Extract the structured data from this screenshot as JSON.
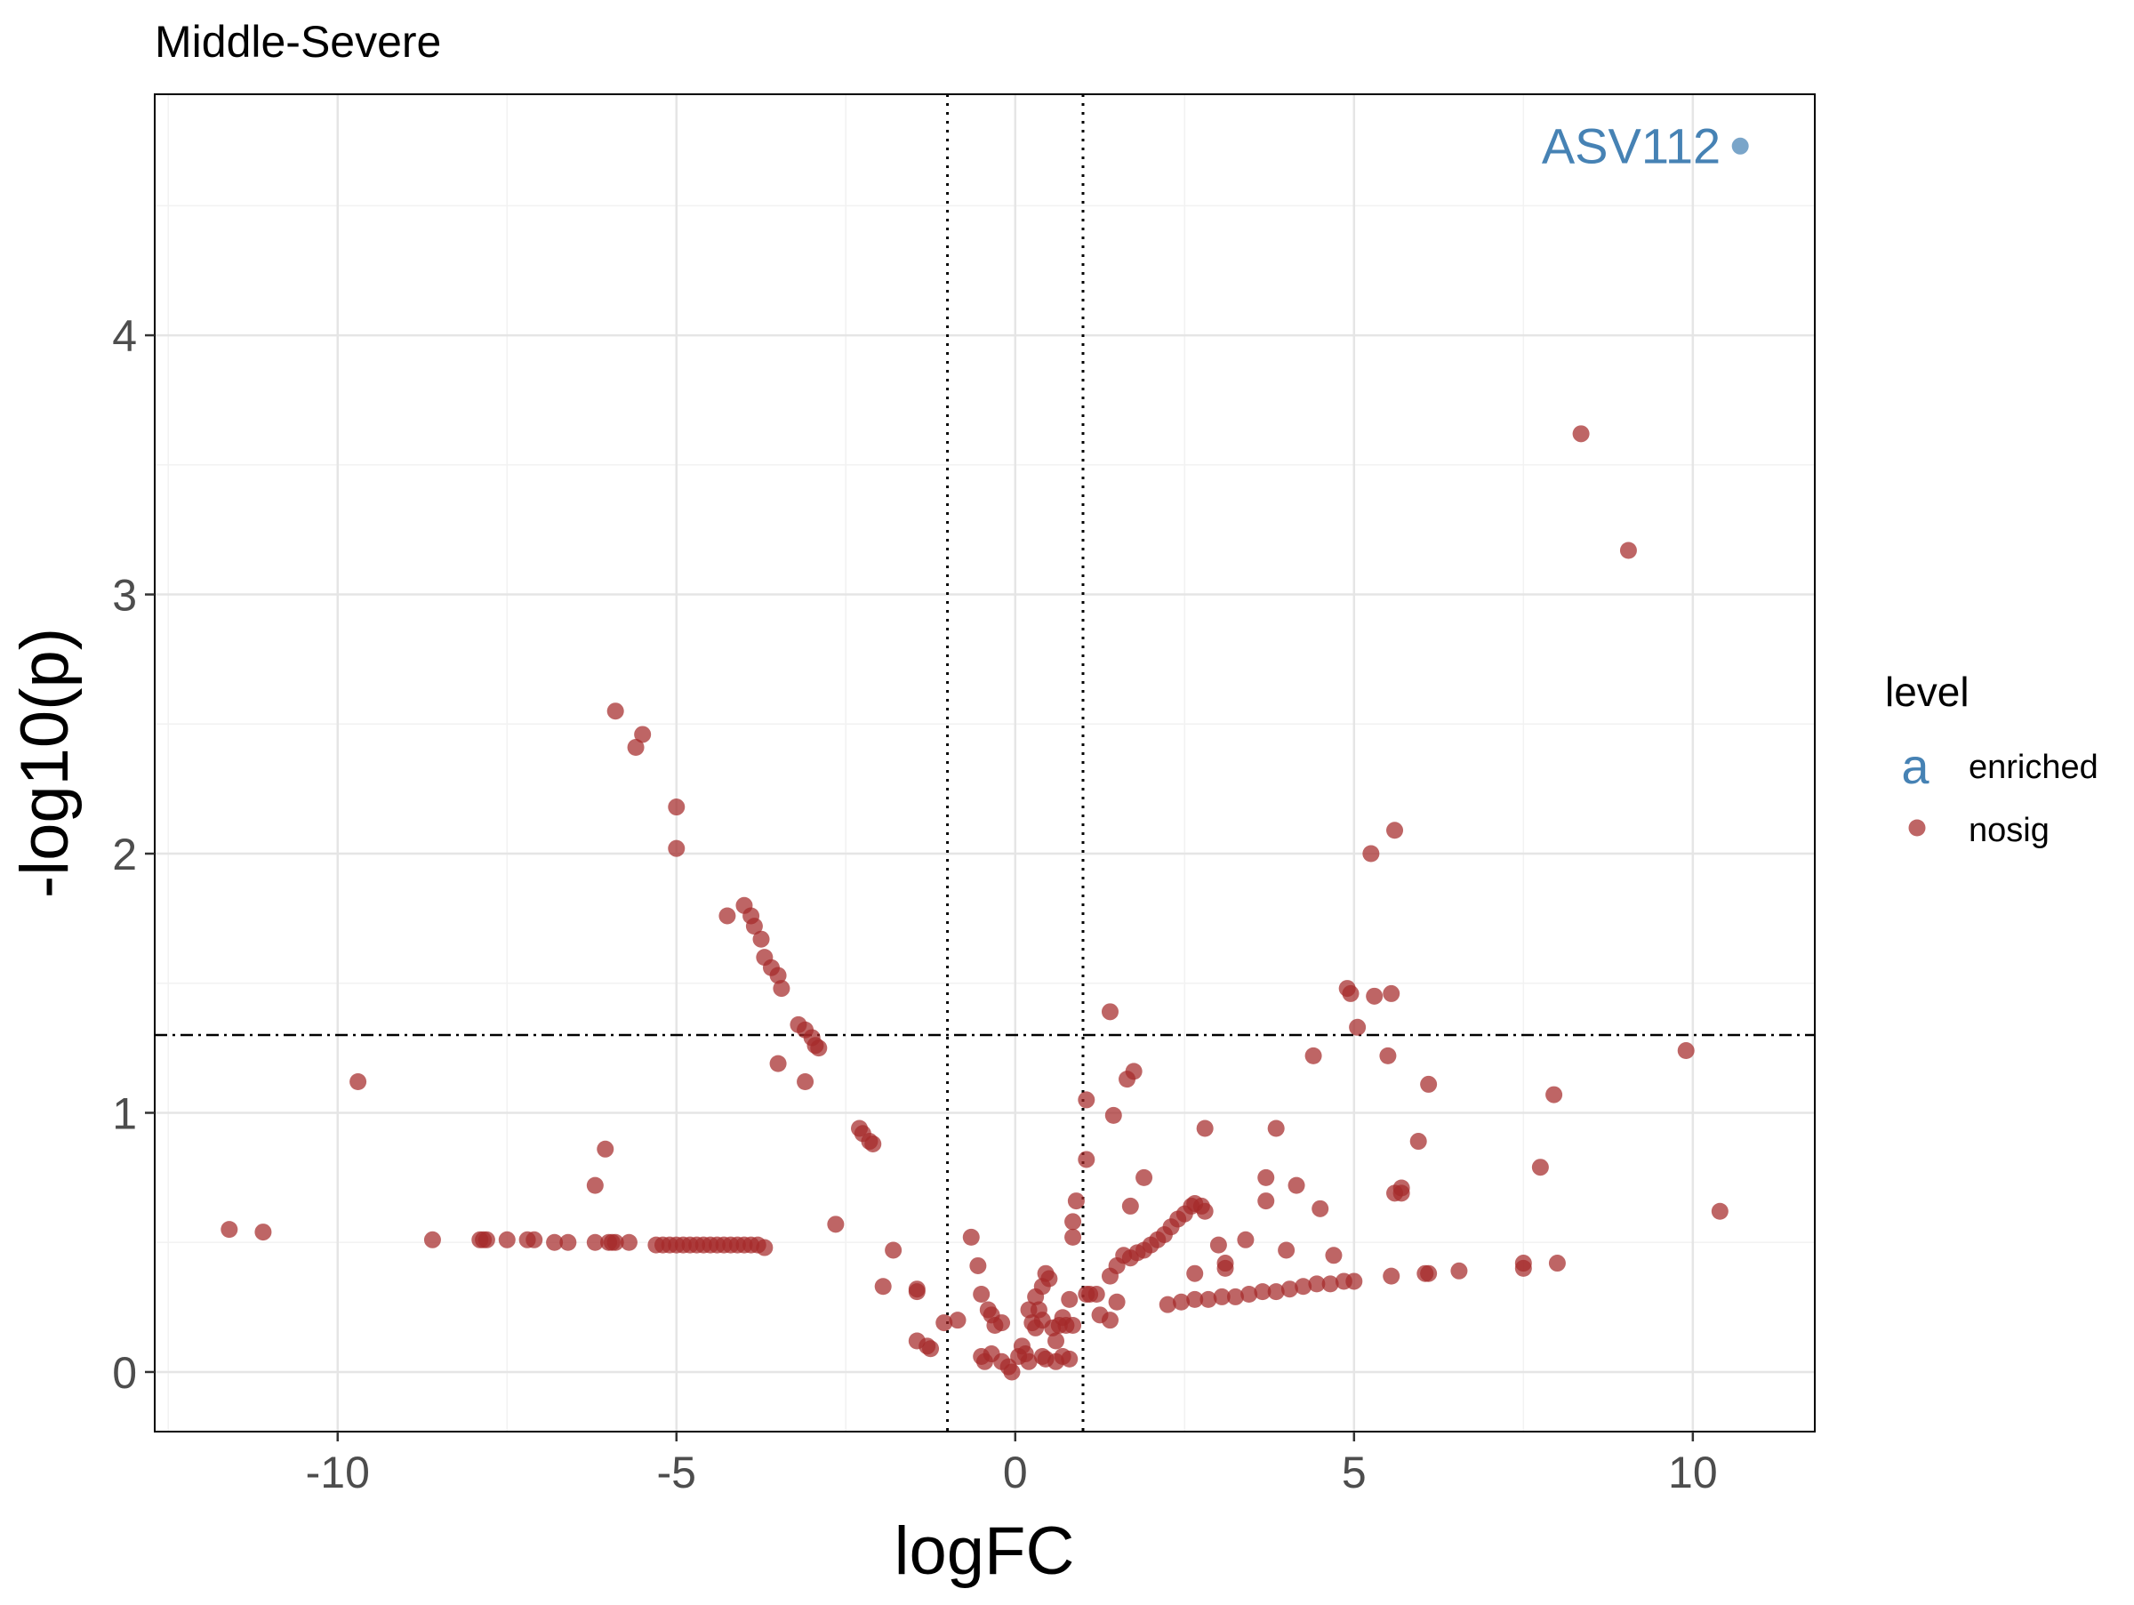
{
  "chart_data": {
    "type": "scatter",
    "title": "Middle-Severe",
    "xlabel": "logFC",
    "ylabel": "-log10(p)",
    "xlim": [
      -12.7,
      11.8
    ],
    "ylim": [
      -0.23,
      4.93
    ],
    "x_ticks": [
      -10,
      -5,
      0,
      5,
      10
    ],
    "x_tick_labels": [
      "-10",
      "-5",
      "0",
      "5",
      "10"
    ],
    "y_ticks": [
      0,
      1,
      2,
      3,
      4
    ],
    "y_tick_labels": [
      "0",
      "1",
      "2",
      "3",
      "4"
    ],
    "grid": true,
    "reference_lines": {
      "vertical": [
        -1,
        1
      ],
      "horizontal": 1.3
    },
    "legend": {
      "title": "level",
      "position": "right",
      "key_glyph_label": "a",
      "entries": [
        {
          "label": "enriched",
          "color": "#4682B4"
        },
        {
          "label": "nosig",
          "color": "#A52A2A"
        }
      ]
    },
    "annotation": {
      "text": "ASV112",
      "color": "#4682B4"
    },
    "series": [
      {
        "name": "enriched",
        "color": "#4682B4",
        "points": [
          [
            10.7,
            4.73
          ]
        ]
      },
      {
        "name": "nosig",
        "color": "#A52A2A",
        "points": [
          [
            -11.6,
            0.55
          ],
          [
            -11.1,
            0.54
          ],
          [
            -9.7,
            1.12
          ],
          [
            -8.6,
            0.51
          ],
          [
            -7.9,
            0.51
          ],
          [
            -7.85,
            0.51
          ],
          [
            -7.8,
            0.51
          ],
          [
            -7.5,
            0.51
          ],
          [
            -7.2,
            0.51
          ],
          [
            -7.1,
            0.51
          ],
          [
            -6.8,
            0.5
          ],
          [
            -6.6,
            0.5
          ],
          [
            -6.2,
            0.5
          ],
          [
            -6.0,
            0.5
          ],
          [
            -5.95,
            0.5
          ],
          [
            -5.9,
            0.5
          ],
          [
            -5.7,
            0.5
          ],
          [
            -6.2,
            0.72
          ],
          [
            -6.05,
            0.86
          ],
          [
            -5.9,
            2.55
          ],
          [
            -5.6,
            2.41
          ],
          [
            -5.5,
            2.46
          ],
          [
            -5.0,
            2.18
          ],
          [
            -5.0,
            2.02
          ],
          [
            -5.3,
            0.49
          ],
          [
            -5.2,
            0.49
          ],
          [
            -5.1,
            0.49
          ],
          [
            -5.0,
            0.49
          ],
          [
            -4.9,
            0.49
          ],
          [
            -4.8,
            0.49
          ],
          [
            -4.7,
            0.49
          ],
          [
            -4.6,
            0.49
          ],
          [
            -4.5,
            0.49
          ],
          [
            -4.4,
            0.49
          ],
          [
            -4.3,
            0.49
          ],
          [
            -4.2,
            0.49
          ],
          [
            -4.1,
            0.49
          ],
          [
            -4.0,
            0.49
          ],
          [
            -3.9,
            0.49
          ],
          [
            -3.8,
            0.49
          ],
          [
            -3.7,
            0.48
          ],
          [
            -4.25,
            1.76
          ],
          [
            -4.0,
            1.8
          ],
          [
            -3.9,
            1.76
          ],
          [
            -3.85,
            1.72
          ],
          [
            -3.75,
            1.67
          ],
          [
            -3.7,
            1.6
          ],
          [
            -3.6,
            1.56
          ],
          [
            -3.5,
            1.53
          ],
          [
            -3.45,
            1.48
          ],
          [
            -3.2,
            1.34
          ],
          [
            -3.1,
            1.32
          ],
          [
            -3.0,
            1.29
          ],
          [
            -2.95,
            1.26
          ],
          [
            -2.9,
            1.25
          ],
          [
            -3.5,
            1.19
          ],
          [
            -3.1,
            1.12
          ],
          [
            -2.3,
            0.94
          ],
          [
            -2.25,
            0.92
          ],
          [
            -2.15,
            0.89
          ],
          [
            -2.1,
            0.88
          ],
          [
            -2.65,
            0.57
          ],
          [
            -1.8,
            0.47
          ],
          [
            -1.95,
            0.33
          ],
          [
            -1.45,
            0.32
          ],
          [
            -1.45,
            0.31
          ],
          [
            -1.45,
            0.12
          ],
          [
            -1.3,
            0.1
          ],
          [
            -1.25,
            0.09
          ],
          [
            -1.05,
            0.19
          ],
          [
            -0.85,
            0.2
          ],
          [
            -0.65,
            0.52
          ],
          [
            -0.55,
            0.41
          ],
          [
            -0.5,
            0.3
          ],
          [
            -0.4,
            0.24
          ],
          [
            -0.35,
            0.22
          ],
          [
            -0.3,
            0.18
          ],
          [
            -0.2,
            0.19
          ],
          [
            -0.5,
            0.06
          ],
          [
            -0.45,
            0.04
          ],
          [
            -0.35,
            0.07
          ],
          [
            -0.2,
            0.04
          ],
          [
            -0.1,
            0.02
          ],
          [
            -0.05,
            0.0
          ],
          [
            0.05,
            0.06
          ],
          [
            0.1,
            0.1
          ],
          [
            0.15,
            0.07
          ],
          [
            0.2,
            0.04
          ],
          [
            0.3,
            0.29
          ],
          [
            0.4,
            0.33
          ],
          [
            0.45,
            0.38
          ],
          [
            0.5,
            0.36
          ],
          [
            0.35,
            0.24
          ],
          [
            0.2,
            0.24
          ],
          [
            0.25,
            0.19
          ],
          [
            0.3,
            0.17
          ],
          [
            0.4,
            0.2
          ],
          [
            0.55,
            0.17
          ],
          [
            0.6,
            0.12
          ],
          [
            0.65,
            0.18
          ],
          [
            0.7,
            0.21
          ],
          [
            0.8,
            0.28
          ],
          [
            0.75,
            0.18
          ],
          [
            0.85,
            0.18
          ],
          [
            0.6,
            0.04
          ],
          [
            0.7,
            0.06
          ],
          [
            0.8,
            0.05
          ],
          [
            0.4,
            0.06
          ],
          [
            0.45,
            0.05
          ],
          [
            0.85,
            0.52
          ],
          [
            0.85,
            0.58
          ],
          [
            0.9,
            0.66
          ],
          [
            1.05,
            1.05
          ],
          [
            1.05,
            0.82
          ],
          [
            1.05,
            0.3
          ],
          [
            1.1,
            0.3
          ],
          [
            1.2,
            0.3
          ],
          [
            1.25,
            0.22
          ],
          [
            1.4,
            0.2
          ],
          [
            1.5,
            0.27
          ],
          [
            1.4,
            1.39
          ],
          [
            1.45,
            0.99
          ],
          [
            1.65,
            1.13
          ],
          [
            1.75,
            1.16
          ],
          [
            1.9,
            0.75
          ],
          [
            1.7,
            0.64
          ],
          [
            1.4,
            0.37
          ],
          [
            1.5,
            0.41
          ],
          [
            1.6,
            0.45
          ],
          [
            1.7,
            0.44
          ],
          [
            1.8,
            0.46
          ],
          [
            1.9,
            0.47
          ],
          [
            2.0,
            0.49
          ],
          [
            2.1,
            0.51
          ],
          [
            2.2,
            0.53
          ],
          [
            2.3,
            0.56
          ],
          [
            2.4,
            0.59
          ],
          [
            2.5,
            0.61
          ],
          [
            2.6,
            0.64
          ],
          [
            2.65,
            0.65
          ],
          [
            2.75,
            0.64
          ],
          [
            2.8,
            0.62
          ],
          [
            2.8,
            0.94
          ],
          [
            2.65,
            0.38
          ],
          [
            2.25,
            0.26
          ],
          [
            2.45,
            0.27
          ],
          [
            2.65,
            0.28
          ],
          [
            2.85,
            0.28
          ],
          [
            3.05,
            0.29
          ],
          [
            3.25,
            0.29
          ],
          [
            3.45,
            0.3
          ],
          [
            3.65,
            0.31
          ],
          [
            3.85,
            0.31
          ],
          [
            4.05,
            0.32
          ],
          [
            4.25,
            0.33
          ],
          [
            4.45,
            0.34
          ],
          [
            4.65,
            0.34
          ],
          [
            4.85,
            0.35
          ],
          [
            5.0,
            0.35
          ],
          [
            3.0,
            0.49
          ],
          [
            3.1,
            0.42
          ],
          [
            3.1,
            0.4
          ],
          [
            3.4,
            0.51
          ],
          [
            3.7,
            0.75
          ],
          [
            3.7,
            0.66
          ],
          [
            3.85,
            0.94
          ],
          [
            4.0,
            0.47
          ],
          [
            4.15,
            0.72
          ],
          [
            4.4,
            1.22
          ],
          [
            4.5,
            0.63
          ],
          [
            4.7,
            0.45
          ],
          [
            4.9,
            1.48
          ],
          [
            4.95,
            1.46
          ],
          [
            5.05,
            1.33
          ],
          [
            5.25,
            2.0
          ],
          [
            5.3,
            1.45
          ],
          [
            5.5,
            1.22
          ],
          [
            5.55,
            1.46
          ],
          [
            5.6,
            2.09
          ],
          [
            5.6,
            0.69
          ],
          [
            5.7,
            0.71
          ],
          [
            5.7,
            0.69
          ],
          [
            5.55,
            0.37
          ],
          [
            6.05,
            0.38
          ],
          [
            6.1,
            0.38
          ],
          [
            5.95,
            0.89
          ],
          [
            6.1,
            1.11
          ],
          [
            6.55,
            0.39
          ],
          [
            7.5,
            0.42
          ],
          [
            7.5,
            0.4
          ],
          [
            7.75,
            0.79
          ],
          [
            7.95,
            1.07
          ],
          [
            8.0,
            0.42
          ],
          [
            8.35,
            3.62
          ],
          [
            9.05,
            3.17
          ],
          [
            9.9,
            1.24
          ],
          [
            10.4,
            0.62
          ]
        ]
      }
    ]
  }
}
